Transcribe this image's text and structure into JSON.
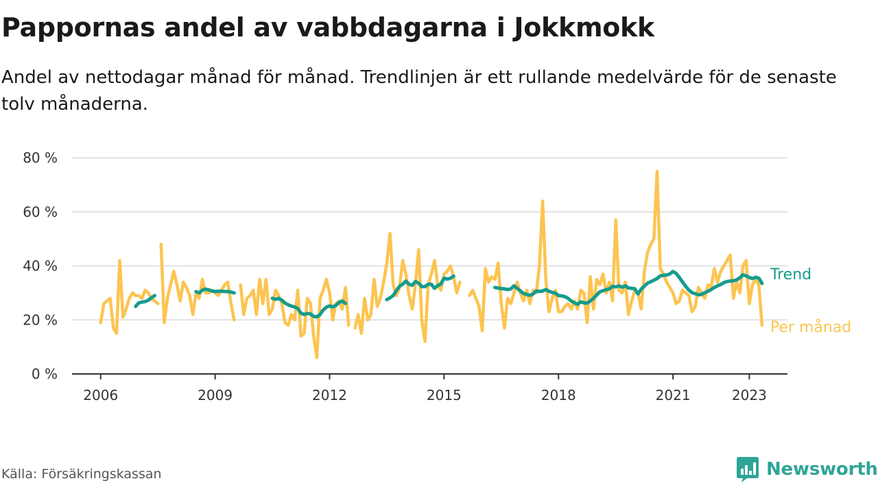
{
  "title": "Pappornas andel av vabbdagarna i Jokkmokk",
  "subtitle": "Andel av nettodagar månad för månad. Trendlinjen är ett rullande medelvärde för de senaste tolv månaderna.",
  "source": "Källa: Försäkringskassan",
  "brand": {
    "name": "Newsworthy",
    "icon": "newsworthy-bar-chart-logo-icon"
  },
  "colors": {
    "monthly": "#fcc451",
    "trend": "#169c8c",
    "grid": "#d9d9d9",
    "axis": "#333333",
    "text": "#333333"
  },
  "chart_data": {
    "type": "line",
    "x_unit": "month",
    "xlim": [
      "2005-04",
      "2024-01"
    ],
    "ylim": [
      0,
      80
    ],
    "y_unit": "%",
    "yticks": [
      0,
      20,
      40,
      60,
      80
    ],
    "ytick_labels": [
      "0 %",
      "20 %",
      "40 %",
      "60 %",
      "80 %"
    ],
    "xticks": [
      "2006-01",
      "2009-01",
      "2012-01",
      "2015-01",
      "2018-01",
      "2021-01",
      "2023-01"
    ],
    "xtick_labels": [
      "2006",
      "2009",
      "2012",
      "2015",
      "2018",
      "2021",
      "2023"
    ],
    "grid": true,
    "legend": "inline labels at line ends (right)",
    "series": [
      {
        "name": "Per månad",
        "segments": [
          {
            "start": "2006-01",
            "values": [
              19,
              26,
              27,
              28,
              17,
              15,
              42,
              21,
              24,
              28,
              30,
              29,
              29,
              28,
              31,
              30,
              28,
              27,
              26
            ]
          },
          {
            "start": "2007-08",
            "values": [
              48,
              19,
              28,
              33,
              38,
              33,
              27,
              34,
              32,
              29,
              22,
              30,
              28,
              35,
              30,
              30,
              31,
              30,
              29,
              31,
              33,
              34,
              26,
              20
            ]
          },
          {
            "start": "2009-09",
            "values": [
              33,
              22,
              28,
              29,
              31,
              22,
              35,
              26,
              35,
              22,
              24,
              31,
              29,
              26,
              19,
              18,
              22,
              20,
              31,
              14,
              15,
              28,
              26,
              14,
              6,
              28,
              31,
              35,
              30,
              20,
              26,
              27,
              24,
              32,
              18
            ]
          },
          {
            "start": "2012-09",
            "values": [
              17,
              22,
              15,
              28,
              20,
              22,
              35,
              25,
              28,
              34,
              41,
              52,
              33,
              29,
              32,
              42,
              37,
              29,
              24,
              33,
              46,
              20,
              12,
              33,
              37,
              42,
              33,
              31,
              37,
              38,
              40,
              36,
              30,
              34
            ]
          },
          {
            "start": "2015-09",
            "values": [
              29,
              31,
              28,
              25,
              16,
              39,
              34,
              36,
              35,
              41,
              26,
              17,
              28,
              26,
              30,
              34,
              30,
              27,
              31,
              26,
              31,
              30,
              40,
              64,
              35,
              23,
              28,
              31,
              23,
              23,
              25,
              26,
              24,
              27,
              24,
              31,
              30,
              19,
              36,
              24,
              35,
              33,
              37,
              30,
              34,
              27,
              57,
              31,
              30,
              34,
              22,
              27,
              31,
              30,
              24,
              38,
              45,
              48,
              50,
              75,
              39,
              37,
              34,
              32,
              30,
              26,
              27,
              31,
              30,
              29,
              23,
              25,
              32,
              30,
              28,
              33,
              32,
              39,
              34,
              38,
              40,
              42,
              44,
              28,
              34,
              30,
              40,
              42,
              26,
              33,
              35,
              33,
              18
            ]
          }
        ]
      },
      {
        "name": "Trend",
        "segments": [
          {
            "start": "2006-12",
            "values": [
              25,
              26.3,
              26.6,
              26.8,
              27.3,
              28.2,
              29
            ]
          },
          {
            "start": "2008-07",
            "values": [
              30.5,
              30,
              31,
              31.4,
              31.1,
              30.7,
              30.5,
              30.6,
              30.6,
              30.5,
              30.5,
              30.3,
              30
            ]
          },
          {
            "start": "2010-07",
            "values": [
              28,
              27.6,
              28,
              27.3,
              26.2,
              25.6,
              25.1,
              24.8,
              24.2,
              22.5,
              22,
              22.4,
              22.2,
              21.3,
              21.1,
              22,
              23.7,
              24.7,
              25.2,
              24.8,
              25.4,
              26.5,
              27,
              26.1
            ]
          },
          {
            "start": "2013-07",
            "values": [
              27.5,
              28.2,
              29,
              30.8,
              32.5,
              33.2,
              34.4,
              33.2,
              32.8,
              34.2,
              33.6,
              32.3,
              32.3,
              33.2,
              33.2,
              31.7,
              32.7,
              33.3,
              35.4,
              35.1,
              35.4,
              36.2
            ]
          },
          {
            "start": "2016-05",
            "values": [
              32,
              31.8,
              31.6,
              31.5,
              31.2,
              31.5,
              32.6,
              31.7,
              30.7,
              29.8,
              29.4,
              29.1,
              29.6,
              30.7,
              30.5,
              30.7,
              31.2,
              30.6,
              30.2,
              29.9,
              29,
              28.9,
              28.6,
              28,
              27,
              26.3,
              25.8,
              26.7,
              26.3,
              26.2,
              27,
              28,
              29.2,
              30.4,
              30.8,
              31.2,
              31.5,
              32.4,
              32.2,
              32.6,
              32.1,
              32.6,
              31.8,
              31.7,
              31.5,
              29.6,
              31.4,
              32.5,
              33.6,
              34.1,
              34.7,
              35.3,
              36.3,
              36.5,
              36.6,
              37,
              37.9,
              37.2,
              35.7,
              34,
              32.4,
              31,
              30.1,
              29.7,
              29.3,
              29.4,
              30.1,
              30.6,
              31.2,
              32,
              32.6,
              33.1,
              33.8,
              34.2,
              34.4,
              34.5,
              34.8,
              35.6,
              36.7,
              36.3,
              35.7,
              35.3,
              35.8,
              35.4,
              33.5
            ]
          }
        ]
      }
    ]
  }
}
